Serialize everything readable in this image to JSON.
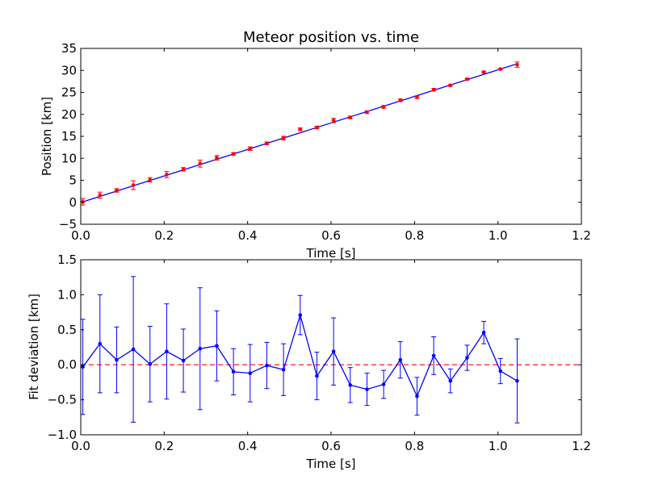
{
  "chart_data": [
    {
      "type": "scatter",
      "title": "Meteor position vs. time",
      "xlabel": "Time [s]",
      "ylabel": "Position [km]",
      "xlim": [
        0.0,
        1.2
      ],
      "ylim": [
        -5,
        35
      ],
      "xticks": [
        "0.0",
        "0.2",
        "0.4",
        "0.6",
        "0.8",
        "1.0",
        "1.2"
      ],
      "yticks": [
        "−5",
        "0",
        "5",
        "10",
        "15",
        "20",
        "25",
        "30",
        "35"
      ],
      "grid": false,
      "points_color": "#ff0000",
      "fit_color": "#0000ff",
      "x": [
        0.005,
        0.046,
        0.086,
        0.126,
        0.166,
        0.206,
        0.246,
        0.286,
        0.326,
        0.366,
        0.406,
        0.446,
        0.486,
        0.526,
        0.566,
        0.606,
        0.646,
        0.686,
        0.726,
        0.766,
        0.806,
        0.846,
        0.886,
        0.926,
        0.966,
        1.006,
        1.046
      ],
      "y": [
        0.1,
        1.6,
        2.7,
        3.9,
        5.1,
        6.3,
        7.5,
        8.8,
        10.1,
        11.0,
        12.2,
        13.4,
        14.6,
        16.6,
        17.0,
        18.6,
        19.3,
        20.5,
        21.7,
        23.2,
        23.9,
        25.6,
        26.6,
        28.0,
        29.6,
        30.3,
        31.3
      ],
      "yerr": [
        0.7,
        0.7,
        0.4,
        1.0,
        0.5,
        0.7,
        0.4,
        0.8,
        0.5,
        0.3,
        0.4,
        0.3,
        0.4,
        0.3,
        0.3,
        0.5,
        0.3,
        0.3,
        0.3,
        0.3,
        0.3,
        0.3,
        0.2,
        0.2,
        0.2,
        0.2,
        0.6
      ],
      "fit": {
        "x": [
          0.005,
          1.046
        ],
        "y": [
          0.1,
          31.5
        ]
      }
    },
    {
      "type": "line",
      "xlabel": "Time [s]",
      "ylabel": "Fit deviation [km]",
      "xlim": [
        0.0,
        1.2
      ],
      "ylim": [
        -1.0,
        1.5
      ],
      "xticks": [
        "0.0",
        "0.2",
        "0.4",
        "0.6",
        "0.8",
        "1.0",
        "1.2"
      ],
      "yticks": [
        "−1.0",
        "−0.5",
        "0.0",
        "0.5",
        "1.0",
        "1.5"
      ],
      "grid": false,
      "line_color": "#0000ff",
      "zero_line_color": "#ff0000",
      "zero_line_style": "dashed",
      "x": [
        0.005,
        0.046,
        0.086,
        0.126,
        0.166,
        0.206,
        0.246,
        0.286,
        0.326,
        0.366,
        0.406,
        0.446,
        0.486,
        0.526,
        0.566,
        0.606,
        0.646,
        0.686,
        0.726,
        0.766,
        0.806,
        0.846,
        0.886,
        0.926,
        0.966,
        1.006,
        1.046
      ],
      "y": [
        -0.03,
        0.3,
        0.07,
        0.22,
        0.01,
        0.19,
        0.06,
        0.23,
        0.27,
        -0.1,
        -0.12,
        -0.01,
        -0.07,
        0.71,
        -0.16,
        0.19,
        -0.29,
        -0.35,
        -0.28,
        0.07,
        -0.45,
        0.13,
        -0.23,
        0.1,
        0.46,
        -0.09,
        -0.23
      ],
      "yerr": [
        0.68,
        0.7,
        0.47,
        1.04,
        0.54,
        0.68,
        0.45,
        0.87,
        0.5,
        0.33,
        0.41,
        0.33,
        0.37,
        0.28,
        0.34,
        0.48,
        0.25,
        0.23,
        0.2,
        0.26,
        0.27,
        0.27,
        0.17,
        0.18,
        0.16,
        0.18,
        0.6
      ]
    }
  ]
}
